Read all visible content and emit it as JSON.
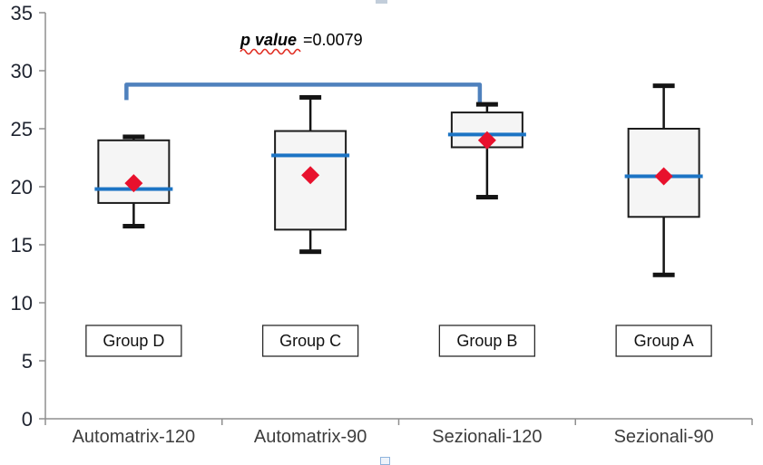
{
  "chart_data": {
    "type": "boxplot",
    "title": "",
    "xlabel": "",
    "ylabel": "",
    "ylim": [
      0,
      35
    ],
    "yticks": [
      0,
      5,
      10,
      15,
      20,
      25,
      30,
      35
    ],
    "grid": false,
    "legend": null,
    "categories": [
      "Automatrix-120",
      "Automatrix-90",
      "Sezionali-120",
      "Sezionali-90"
    ],
    "series": [
      {
        "category": "Automatrix-120",
        "group_label": "Group D",
        "whisker_low": 16.6,
        "q1": 18.6,
        "median": 19.8,
        "q3": 24.0,
        "whisker_high": 24.3,
        "mean": 20.3
      },
      {
        "category": "Automatrix-90",
        "group_label": "Group C",
        "whisker_low": 14.4,
        "q1": 16.3,
        "median": 22.7,
        "q3": 24.8,
        "whisker_high": 27.7,
        "mean": 21.0
      },
      {
        "category": "Sezionali-120",
        "group_label": "Group B",
        "whisker_low": 19.1,
        "q1": 23.4,
        "median": 24.5,
        "q3": 26.4,
        "whisker_high": 27.1,
        "mean": 24.0
      },
      {
        "category": "Sezionali-90",
        "group_label": "Group A",
        "whisker_low": 12.4,
        "q1": 17.4,
        "median": 20.9,
        "q3": 25.0,
        "whisker_high": 28.7,
        "mean": 20.9
      }
    ],
    "annotation": {
      "label": "p value",
      "value_text": "=0.0079",
      "bracket_from": "Automatrix-120",
      "bracket_to": "Sezionali-120",
      "bracket_y_value": 28.8
    },
    "colors": {
      "median_line": "#1c74c4",
      "mean_marker": "#e8112d",
      "bracket": "#4f81bd",
      "box_fill": "#f5f5f5",
      "box_border": "#1c1c1c",
      "whisker": "#141414",
      "axis": "#8f8f8f",
      "ytick_label": "#1f2430",
      "category_label": "#3d3d3d",
      "group_label_border": "#2b2b2b",
      "spellcheck_underline": "#e02b20"
    }
  }
}
